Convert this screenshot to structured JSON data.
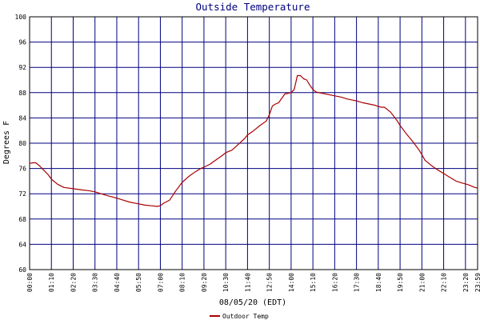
{
  "chart_data": {
    "type": "line",
    "title": "Outside Temperature",
    "xlabel": "08/05/20 (EDT)",
    "ylabel": "Degrees F",
    "ylim": [
      60,
      100
    ],
    "xlim_minutes": [
      0,
      1439
    ],
    "y_ticks": [
      60,
      64,
      68,
      72,
      76,
      80,
      84,
      88,
      92,
      96,
      100
    ],
    "x_ticks": [
      {
        "t": 0,
        "label": "00:00"
      },
      {
        "t": 70,
        "label": "01:10"
      },
      {
        "t": 140,
        "label": "02:20"
      },
      {
        "t": 210,
        "label": "03:30"
      },
      {
        "t": 280,
        "label": "04:40"
      },
      {
        "t": 350,
        "label": "05:50"
      },
      {
        "t": 420,
        "label": "07:00"
      },
      {
        "t": 490,
        "label": "08:10"
      },
      {
        "t": 560,
        "label": "09:20"
      },
      {
        "t": 630,
        "label": "10:30"
      },
      {
        "t": 700,
        "label": "11:40"
      },
      {
        "t": 770,
        "label": "12:50"
      },
      {
        "t": 840,
        "label": "14:00"
      },
      {
        "t": 910,
        "label": "15:10"
      },
      {
        "t": 980,
        "label": "16:20"
      },
      {
        "t": 1050,
        "label": "17:30"
      },
      {
        "t": 1120,
        "label": "18:40"
      },
      {
        "t": 1190,
        "label": "19:50"
      },
      {
        "t": 1260,
        "label": "21:00"
      },
      {
        "t": 1330,
        "label": "22:10"
      },
      {
        "t": 1400,
        "label": "23:20"
      },
      {
        "t": 1439,
        "label": "23:59"
      }
    ],
    "grid": true,
    "legend_position": "bottom-left",
    "series": [
      {
        "name": "Outdoor Temp",
        "color": "#aa0000",
        "x": [
          "00:00",
          "00:10",
          "00:20",
          "00:30",
          "00:40",
          "00:50",
          "01:00",
          "01:10",
          "01:30",
          "01:50",
          "02:20",
          "02:50",
          "03:10",
          "03:30",
          "03:50",
          "04:10",
          "04:40",
          "05:00",
          "05:20",
          "05:50",
          "06:10",
          "06:30",
          "06:50",
          "07:00",
          "07:10",
          "07:30",
          "07:50",
          "08:10",
          "08:30",
          "08:50",
          "09:10",
          "09:20",
          "09:40",
          "10:00",
          "10:20",
          "10:30",
          "10:50",
          "11:10",
          "11:30",
          "11:40",
          "12:00",
          "12:20",
          "12:40",
          "12:50",
          "13:00",
          "13:10",
          "13:20",
          "13:40",
          "13:50",
          "14:00",
          "14:10",
          "14:20",
          "14:30",
          "14:40",
          "14:50",
          "15:00",
          "15:10",
          "15:20",
          "15:40",
          "16:00",
          "16:20",
          "16:40",
          "17:00",
          "17:20",
          "17:30",
          "17:50",
          "18:10",
          "18:30",
          "18:40",
          "18:50",
          "19:00",
          "19:20",
          "19:40",
          "19:50",
          "20:10",
          "20:30",
          "20:50",
          "21:00",
          "21:10",
          "21:30",
          "21:50",
          "22:10",
          "22:30",
          "22:50",
          "23:10",
          "23:30",
          "23:50",
          "23:59"
        ],
        "values": [
          76.8,
          76.9,
          76.9,
          76.5,
          76.0,
          75.5,
          75.0,
          74.3,
          73.5,
          73.0,
          72.8,
          72.6,
          72.5,
          72.3,
          72.0,
          71.7,
          71.3,
          71.0,
          70.7,
          70.4,
          70.2,
          70.1,
          70.0,
          70.1,
          70.5,
          71.0,
          72.5,
          73.8,
          74.7,
          75.4,
          76.0,
          76.2,
          76.7,
          77.4,
          78.1,
          78.5,
          78.9,
          79.8,
          80.7,
          81.3,
          82.0,
          82.8,
          83.5,
          84.5,
          85.9,
          86.2,
          86.4,
          87.8,
          87.9,
          88.0,
          88.5,
          90.7,
          90.7,
          90.2,
          90.0,
          89.2,
          88.5,
          88.1,
          87.9,
          87.7,
          87.5,
          87.3,
          87.0,
          86.8,
          86.7,
          86.4,
          86.2,
          86.0,
          85.8,
          85.7,
          85.7,
          84.9,
          83.6,
          82.8,
          81.5,
          80.3,
          79.0,
          78.2,
          77.3,
          76.5,
          75.8,
          75.2,
          74.6,
          74.0,
          73.7,
          73.4,
          73.0,
          72.9
        ]
      }
    ]
  }
}
